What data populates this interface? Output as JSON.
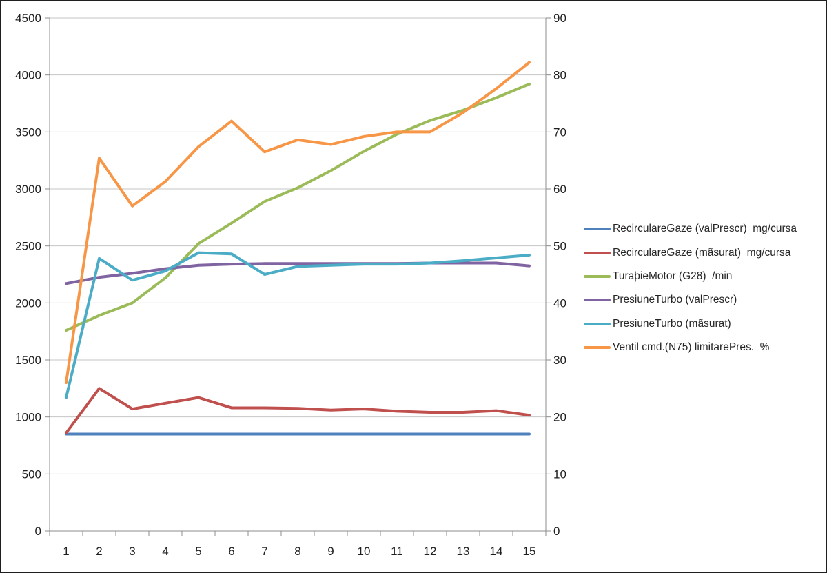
{
  "chart_data": {
    "type": "line",
    "title": "",
    "grid": true,
    "legend_position": "right",
    "x_categories": [
      1,
      2,
      3,
      4,
      5,
      6,
      7,
      8,
      9,
      10,
      11,
      12,
      13,
      14,
      15
    ],
    "axes": {
      "left": {
        "min": 0,
        "max": 4500,
        "step": 500,
        "ticks": [
          "0",
          "500",
          "1000",
          "1500",
          "2000",
          "2500",
          "3000",
          "3500",
          "4000",
          "4500"
        ]
      },
      "right": {
        "min": 0,
        "max": 90,
        "step": 10,
        "ticks": [
          "0",
          "10",
          "20",
          "30",
          "40",
          "50",
          "60",
          "70",
          "80",
          "90"
        ]
      },
      "x_ticks": [
        "1",
        "2",
        "3",
        "4",
        "5",
        "6",
        "7",
        "8",
        "9",
        "10",
        "11",
        "12",
        "13",
        "14",
        "15"
      ]
    },
    "series": [
      {
        "name": "RecirculareGaze (valPrescr)  mg/cursa",
        "color": "#4F81BD",
        "axis": "left",
        "values": [
          850,
          850,
          850,
          850,
          850,
          850,
          850,
          850,
          850,
          850,
          850,
          850,
          850,
          850,
          850
        ]
      },
      {
        "name": "RecirculareGaze (mãsurat)  mg/cursa",
        "color": "#C0504D",
        "axis": "left",
        "values": [
          860,
          1250,
          1070,
          1120,
          1170,
          1080,
          1080,
          1075,
          1060,
          1070,
          1050,
          1040,
          1040,
          1055,
          1015
        ]
      },
      {
        "name": "TuraþieMotor (G28)  /min",
        "color": "#9BBB59",
        "axis": "left",
        "values": [
          1760,
          1890,
          2000,
          2220,
          2520,
          2700,
          2890,
          3010,
          3160,
          3330,
          3480,
          3600,
          3690,
          3800,
          3920
        ]
      },
      {
        "name": "PresiuneTurbo (valPrescr)",
        "color": "#8064A2",
        "axis": "left",
        "values": [
          2170,
          2225,
          2260,
          2300,
          2330,
          2340,
          2345,
          2345,
          2345,
          2345,
          2345,
          2350,
          2350,
          2350,
          2325
        ]
      },
      {
        "name": "PresiuneTurbo (mãsurat)",
        "color": "#4BACC6",
        "axis": "left",
        "values": [
          1170,
          2390,
          2200,
          2280,
          2440,
          2430,
          2250,
          2320,
          2330,
          2340,
          2340,
          2350,
          2370,
          2395,
          2420
        ]
      },
      {
        "name": "Ventil cmd.(N75) limitarePres.  %",
        "color": "#F79646",
        "axis": "right",
        "values": [
          26,
          65.4,
          57,
          61.3,
          67.4,
          71.9,
          66.5,
          68.6,
          67.8,
          69.2,
          70,
          70,
          73.4,
          77.6,
          82.2
        ]
      }
    ],
    "style": {
      "gridline_color": "#C6C6C6",
      "axis_color": "#8E8E8E",
      "tick_label_color": "#1f1f1f",
      "background": "#FFFFFF",
      "line_width": 4
    }
  }
}
